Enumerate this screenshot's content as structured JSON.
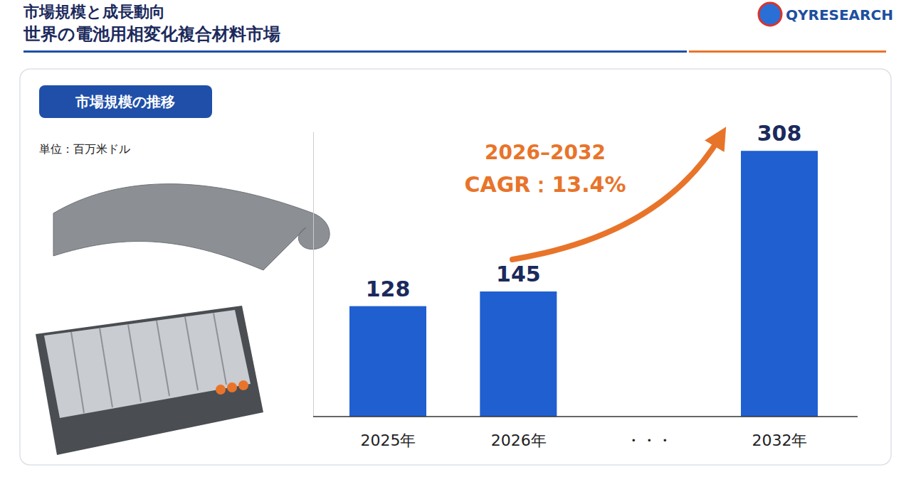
{
  "logo": {
    "text": "QYRESEARCH"
  },
  "chart_data": {
    "type": "bar",
    "title": "市場規模と成長動向",
    "subtitle": "世界の電池用相変化複合材料市場",
    "panel_title": "市場規模の推移",
    "ylabel": "単位：百万米ドル",
    "categories": [
      "2025年",
      "2026年",
      "・・・",
      "2032年"
    ],
    "values": [
      128,
      145,
      null,
      308
    ],
    "color": "#1f5fd0",
    "ylim": [
      0,
      330
    ],
    "yticks": [
      0
    ],
    "tick_labels": "x",
    "data_labels": true,
    "grid": false,
    "annotations": [
      {
        "text": "2026–2032"
      },
      {
        "text": "CAGR：13.4%"
      }
    ]
  }
}
